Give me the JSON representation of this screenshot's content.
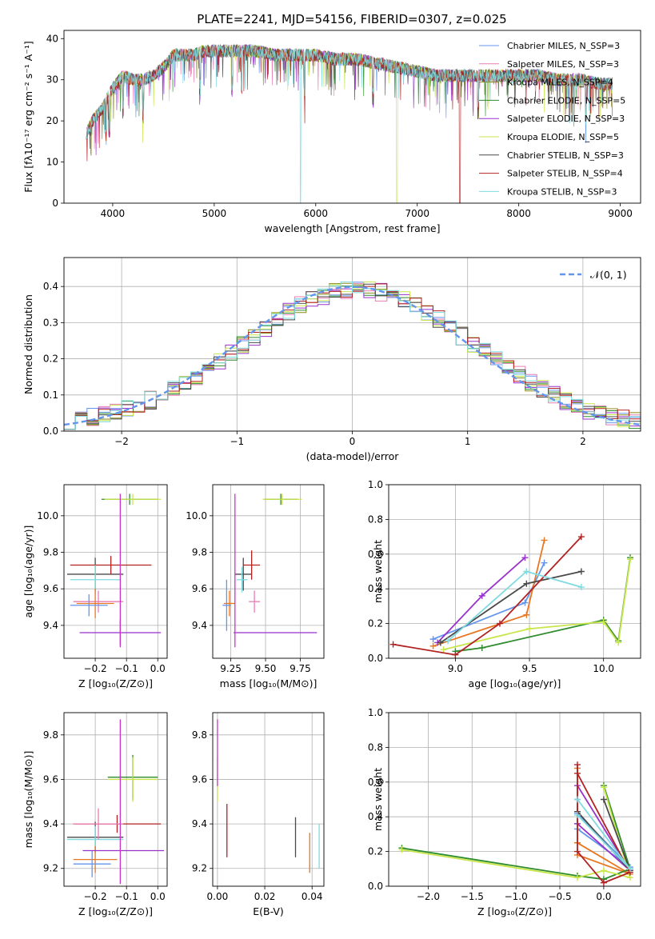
{
  "chart_data": [
    {
      "id": "spectrum",
      "type": "line",
      "title": "PLATE=2241, MJD=54156, FIBERID=0307, z=0.025",
      "xlabel": "wavelength [Angstrom, rest frame]",
      "ylabel": "Flux [fλ10⁻¹⁷ erg cm⁻² s⁻¹ A⁻¹]",
      "xlim": [
        3520,
        9200
      ],
      "ylim": [
        0,
        42
      ],
      "xticks": [
        4000,
        5000,
        6000,
        7000,
        8000,
        9000
      ],
      "yticks": [
        0,
        10,
        20,
        30,
        40
      ],
      "legend_position": "top-right",
      "continuum": {
        "x": [
          3740,
          3800,
          3900,
          4000,
          4100,
          4200,
          4300,
          4400,
          4500,
          4600,
          4700,
          4800,
          4900,
          5000,
          5200,
          5400,
          5600,
          5800,
          6000,
          6200,
          6400,
          6600,
          6800,
          7000,
          7200,
          7400,
          7600,
          7800,
          8000,
          8200,
          8400,
          8600,
          8800,
          8920
        ],
        "y": [
          17,
          20,
          23,
          28,
          31,
          30,
          30,
          31,
          33,
          36,
          36,
          36,
          37,
          37,
          37,
          37,
          36,
          36,
          36,
          35,
          35,
          34,
          33,
          32,
          31,
          31,
          31,
          31,
          31,
          31,
          30,
          30,
          29,
          29
        ]
      },
      "series": [
        {
          "name": "Chabrier MILES, N_SSP=3",
          "color": "#6495ed",
          "drop_at": null
        },
        {
          "name": "Salpeter MILES, N_SSP=3",
          "color": "#e87cb4",
          "drop_at": null
        },
        {
          "name": "Kroupa MILES, N_SSP=4",
          "color": "#8a8a1a",
          "drop_at": null
        },
        {
          "name": "Chabrier ELODIE, N_SSP=5",
          "color": "#2e8b2e",
          "drop_at": null
        },
        {
          "name": "Salpeter ELODIE, N_SSP=3",
          "color": "#9932cc",
          "drop_at": null
        },
        {
          "name": "Kroupa ELODIE, N_SSP=5",
          "color": "#c8e64a",
          "drop_at": 6800
        },
        {
          "name": "Chabrier STELIB, N_SSP=3",
          "color": "#4a4a4a",
          "drop_at": null
        },
        {
          "name": "Salpeter STELIB, N_SSP=4",
          "color": "#b22222",
          "drop_at": 7420
        },
        {
          "name": "Kroupa STELIB, N_SSP=3",
          "color": "#7fdbe0",
          "drop_at": 5850
        }
      ]
    },
    {
      "id": "residuals",
      "type": "line",
      "xlabel": "(data-model)/error",
      "ylabel": "Normed distribution",
      "xlim": [
        -2.5,
        2.5
      ],
      "ylim": [
        0,
        0.48
      ],
      "xticks": [
        -2,
        -1,
        0,
        1,
        2
      ],
      "yticks": [
        0.0,
        0.1,
        0.2,
        0.3,
        0.4
      ],
      "legend_position": "top-right",
      "reference": {
        "name": "𝒩(0, 1)",
        "color": "#6495ed",
        "mu": 0,
        "sigma": 1
      },
      "bin_width": 0.1,
      "histogram_base": {
        "x": [
          -2.5,
          -2.0,
          -1.5,
          -1.0,
          -0.5,
          0.0,
          0.5,
          1.0,
          1.5,
          2.0,
          2.5
        ],
        "y": [
          0.03,
          0.06,
          0.11,
          0.21,
          0.33,
          0.39,
          0.37,
          0.26,
          0.16,
          0.07,
          0.03
        ]
      }
    },
    {
      "id": "age-vs-Z",
      "type": "scatter",
      "xlabel": "Z [log₁₀(Z/Z⊙)]",
      "ylabel": "age  [log₁₀(age/yr)]",
      "xlim": [
        -0.3,
        0.03
      ],
      "ylim": [
        9.22,
        10.17
      ],
      "xticks": [
        -0.2,
        -0.1,
        0.0
      ],
      "yticks": [
        9.4,
        9.6,
        9.8,
        10.0
      ],
      "points": [
        {
          "x": -0.09,
          "y": 10.09,
          "xerr": 0.09,
          "yerr": 0.03,
          "color": "#2e8b2e"
        },
        {
          "x": -0.08,
          "y": 10.09,
          "xerr": 0.09,
          "yerr": 0.03,
          "color": "#c8e64a"
        },
        {
          "x": -0.2,
          "y": 9.68,
          "xerr": 0.09,
          "yerr": 0.09,
          "color": "#4a4a4a"
        },
        {
          "x": -0.15,
          "y": 9.73,
          "xerr": 0.13,
          "yerr": 0.05,
          "color": "#b22222"
        },
        {
          "x": -0.2,
          "y": 9.65,
          "xerr": 0.08,
          "yerr": 0.08,
          "color": "#7fdbe0"
        },
        {
          "x": -0.19,
          "y": 9.53,
          "xerr": 0.08,
          "yerr": 0.06,
          "color": "#e87cb4"
        },
        {
          "x": -0.2,
          "y": 9.52,
          "xerr": 0.06,
          "yerr": 0.08,
          "color": "#e87722"
        },
        {
          "x": -0.22,
          "y": 9.51,
          "xerr": 0.06,
          "yerr": 0.06,
          "color": "#6495ed"
        },
        {
          "x": -0.12,
          "y": 9.36,
          "xerr": 0.13,
          "yerr": 0.07,
          "color": "#9932cc"
        },
        {
          "x": -0.12,
          "y": 9.7,
          "xerr": 0.0,
          "yerr": 0.42,
          "color": "#cc33cc"
        }
      ]
    },
    {
      "id": "age-vs-mass",
      "type": "scatter",
      "xlabel": "mass [log₁₀(M/M⊙)]",
      "ylabel": "",
      "xlim": [
        9.12,
        9.92
      ],
      "ylim": [
        9.22,
        10.17
      ],
      "xticks": [
        9.25,
        9.5,
        9.75
      ],
      "yticks": [
        9.4,
        9.6,
        9.8,
        10.0
      ],
      "points": [
        {
          "x": 9.61,
          "y": 10.09,
          "xerr": 0.12,
          "yerr": 0.03,
          "color": "#2e8b2e"
        },
        {
          "x": 9.62,
          "y": 10.09,
          "xerr": 0.14,
          "yerr": 0.03,
          "color": "#c8e64a"
        },
        {
          "x": 9.34,
          "y": 9.68,
          "xerr": 0.06,
          "yerr": 0.09,
          "color": "#4a4a4a"
        },
        {
          "x": 9.4,
          "y": 9.73,
          "xerr": 0.06,
          "yerr": 0.08,
          "color": "#b22222"
        },
        {
          "x": 9.33,
          "y": 9.65,
          "xerr": 0.04,
          "yerr": 0.07,
          "color": "#7fdbe0"
        },
        {
          "x": 9.42,
          "y": 9.53,
          "xerr": 0.04,
          "yerr": 0.06,
          "color": "#e87cb4"
        },
        {
          "x": 9.24,
          "y": 9.52,
          "xerr": 0.04,
          "yerr": 0.07,
          "color": "#e87722"
        },
        {
          "x": 9.22,
          "y": 9.51,
          "xerr": 0.03,
          "yerr": 0.14,
          "color": "#6495ed"
        },
        {
          "x": 9.57,
          "y": 9.36,
          "xerr": 0.3,
          "yerr": 0.0,
          "color": "#9932cc"
        },
        {
          "x": 9.28,
          "y": 9.7,
          "xerr": 0.0,
          "yerr": 0.42,
          "color": "#cc33cc"
        }
      ]
    },
    {
      "id": "weight-vs-age",
      "type": "line",
      "xlabel": "age  [log₁₀(age/yr)]",
      "ylabel": "mass weight",
      "xlim": [
        8.55,
        10.25
      ],
      "ylim": [
        0.0,
        1.0
      ],
      "xticks": [
        9.0,
        9.5,
        10.0
      ],
      "yticks": [
        0.0,
        0.2,
        0.4,
        0.6,
        0.8,
        1.0
      ],
      "series": [
        {
          "color": "#6495ed",
          "x": [
            8.85,
            9.47,
            9.6
          ],
          "y": [
            0.11,
            0.32,
            0.55
          ]
        },
        {
          "color": "#e87722",
          "x": [
            8.85,
            9.48,
            9.6
          ],
          "y": [
            0.07,
            0.25,
            0.68
          ]
        },
        {
          "color": "#2e8b2e",
          "x": [
            9.0,
            9.18,
            10.0,
            10.1,
            10.18
          ],
          "y": [
            0.04,
            0.06,
            0.22,
            0.1,
            0.58
          ]
        },
        {
          "color": "#9932cc",
          "x": [
            8.88,
            9.18,
            9.47
          ],
          "y": [
            0.09,
            0.36,
            0.58
          ]
        },
        {
          "color": "#c8e64a",
          "x": [
            8.92,
            9.5,
            10.0,
            10.1,
            10.18
          ],
          "y": [
            0.05,
            0.17,
            0.21,
            0.09,
            0.57
          ]
        },
        {
          "color": "#4a4a4a",
          "x": [
            8.9,
            9.48,
            9.85
          ],
          "y": [
            0.09,
            0.43,
            0.5
          ]
        },
        {
          "color": "#b22222",
          "x": [
            8.58,
            9.0,
            9.3,
            9.85
          ],
          "y": [
            0.08,
            0.02,
            0.2,
            0.7
          ]
        },
        {
          "color": "#7fdbe0",
          "x": [
            8.95,
            9.48,
            9.85
          ],
          "y": [
            0.1,
            0.5,
            0.41
          ]
        }
      ]
    },
    {
      "id": "mass-vs-Z",
      "type": "scatter",
      "xlabel": "Z [log₁₀(Z/Z⊙)]",
      "ylabel": "mass [log₁₀(M/M⊙)]",
      "xlim": [
        -0.3,
        0.03
      ],
      "ylim": [
        9.12,
        9.9
      ],
      "xticks": [
        -0.2,
        -0.1,
        0.0
      ],
      "yticks": [
        9.2,
        9.4,
        9.6,
        9.8
      ],
      "points": [
        {
          "x": -0.08,
          "y": 9.61,
          "xerr": 0.08,
          "yerr": 0.1,
          "color": "#2e8b2e"
        },
        {
          "x": -0.08,
          "y": 9.6,
          "xerr": 0.08,
          "yerr": 0.1,
          "color": "#c8e64a"
        },
        {
          "x": -0.2,
          "y": 9.34,
          "xerr": 0.09,
          "yerr": 0.07,
          "color": "#4a4a4a"
        },
        {
          "x": -0.13,
          "y": 9.4,
          "xerr": 0.14,
          "yerr": 0.04,
          "color": "#b22222"
        },
        {
          "x": -0.2,
          "y": 9.33,
          "xerr": 0.09,
          "yerr": 0.06,
          "color": "#7fdbe0"
        },
        {
          "x": -0.19,
          "y": 9.4,
          "xerr": 0.08,
          "yerr": 0.07,
          "color": "#e87cb4"
        },
        {
          "x": -0.2,
          "y": 9.24,
          "xerr": 0.07,
          "yerr": 0.06,
          "color": "#e87722"
        },
        {
          "x": -0.21,
          "y": 9.22,
          "xerr": 0.06,
          "yerr": 0.06,
          "color": "#6495ed"
        },
        {
          "x": -0.11,
          "y": 9.28,
          "xerr": 0.13,
          "yerr": 0.0,
          "color": "#9932cc"
        },
        {
          "x": -0.12,
          "y": 9.5,
          "xerr": 0.0,
          "yerr": 0.37,
          "color": "#cc33cc"
        }
      ]
    },
    {
      "id": "mass-vs-ebv",
      "type": "scatter",
      "xlabel": "E(B-V)",
      "ylabel": "",
      "xlim": [
        -0.002,
        0.045
      ],
      "ylim": [
        9.12,
        9.9
      ],
      "xticks": [
        0.0,
        0.02,
        0.04
      ],
      "yticks": [
        9.2,
        9.4,
        9.6,
        9.8
      ],
      "points": [
        {
          "x": 0.0,
          "y": 9.6,
          "xerr": 0.0,
          "yerr": 0.1,
          "color": "#c8e64a"
        },
        {
          "x": 0.0,
          "y": 9.72,
          "xerr": 0.0,
          "yerr": 0.15,
          "color": "#cc33cc"
        },
        {
          "x": 0.004,
          "y": 9.37,
          "xerr": 0.0,
          "yerr": 0.12,
          "color": "#b22222"
        },
        {
          "x": 0.033,
          "y": 9.34,
          "xerr": 0.0,
          "yerr": 0.09,
          "color": "#4a4a4a"
        },
        {
          "x": 0.039,
          "y": 9.27,
          "xerr": 0.0,
          "yerr": 0.09,
          "color": "#e87722"
        },
        {
          "x": 0.043,
          "y": 9.3,
          "xerr": 0.0,
          "yerr": 0.1,
          "color": "#7fdbe0"
        }
      ]
    },
    {
      "id": "weight-vs-Z",
      "type": "line",
      "xlabel": "Z [log₁₀(Z/Z⊙)]",
      "ylabel": "mass weight",
      "xlim": [
        -2.45,
        0.42
      ],
      "ylim": [
        0.0,
        1.0
      ],
      "xticks": [
        -2.0,
        -1.5,
        -1.0,
        -0.5,
        0.0
      ],
      "yticks": [
        0.0,
        0.2,
        0.4,
        0.6,
        0.8,
        1.0
      ],
      "series": [
        {
          "color": "#6495ed",
          "x": [
            -0.3,
            -0.3,
            0.3,
            -0.3
          ],
          "y": [
            0.5,
            0.33,
            0.11,
            0.42
          ]
        },
        {
          "color": "#e87722",
          "x": [
            -0.3,
            -0.3,
            0.3,
            -0.3
          ],
          "y": [
            0.68,
            0.25,
            0.07,
            0.18
          ]
        },
        {
          "color": "#2e8b2e",
          "x": [
            -2.3,
            -0.3,
            0.0,
            0.3,
            0.0
          ],
          "y": [
            0.22,
            0.06,
            0.04,
            0.1,
            0.58
          ]
        },
        {
          "color": "#9932cc",
          "x": [
            -0.3,
            0.3,
            -0.3
          ],
          "y": [
            0.58,
            0.09,
            0.36
          ]
        },
        {
          "color": "#c8e64a",
          "x": [
            -2.3,
            -0.3,
            0.0,
            0.3,
            0.0
          ],
          "y": [
            0.21,
            0.05,
            0.09,
            0.05,
            0.57
          ]
        },
        {
          "color": "#4a4a4a",
          "x": [
            -0.3,
            0.3,
            0.0
          ],
          "y": [
            0.43,
            0.09,
            0.5
          ]
        },
        {
          "color": "#b22222",
          "x": [
            -0.3,
            -0.3,
            0.0,
            0.3,
            -0.3
          ],
          "y": [
            0.7,
            0.2,
            0.02,
            0.08,
            0.65
          ]
        },
        {
          "color": "#7fdbe0",
          "x": [
            -0.3,
            0.3,
            -0.3
          ],
          "y": [
            0.5,
            0.1,
            0.41
          ]
        }
      ]
    }
  ]
}
